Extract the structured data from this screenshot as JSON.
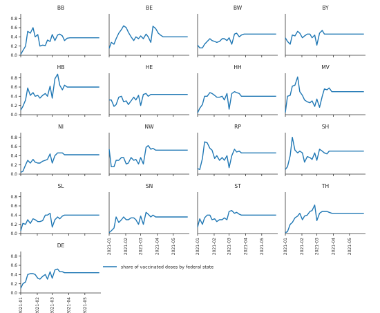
{
  "chart_data": {
    "type": "line",
    "layout": "small-multiples-grid",
    "ncols": 4,
    "legend": {
      "label": "share of vaccinated doses by federal state",
      "placement": "right of last panel"
    },
    "x_ticks": [
      "2021-01",
      "2021-02",
      "2021-03",
      "2021-04",
      "2021-05"
    ],
    "x_range": [
      "2021-01-01",
      "2021-05-31"
    ],
    "y_ticks": [
      0.0,
      0.2,
      0.4,
      0.6,
      0.8
    ],
    "ylim": [
      0,
      0.9
    ],
    "grid": false,
    "line_color": "#1f77b4",
    "dates": [
      "2021-01-01",
      "2021-01-05",
      "2021-01-10",
      "2021-01-14",
      "2021-01-19",
      "2021-01-24",
      "2021-01-28",
      "2021-02-02",
      "2021-02-06",
      "2021-02-11",
      "2021-02-16",
      "2021-02-20",
      "2021-02-25",
      "2021-03-01",
      "2021-03-06",
      "2021-03-11",
      "2021-03-15",
      "2021-03-20",
      "2021-03-24",
      "2021-03-29",
      "2021-04-03",
      "2021-04-07",
      "2021-04-12",
      "2021-04-17",
      "2021-04-21",
      "2021-04-26",
      "2021-04-30",
      "2021-05-05",
      "2021-05-10",
      "2021-05-14",
      "2021-05-19",
      "2021-05-24",
      "2021-05-28"
    ],
    "panels": [
      {
        "title": "BB",
        "values": [
          0.02,
          0.1,
          0.2,
          0.52,
          0.48,
          0.6,
          0.4,
          0.45,
          0.2,
          0.22,
          0.21,
          0.33,
          0.3,
          0.45,
          0.32,
          0.44,
          0.46,
          0.42,
          0.32,
          0.37,
          0.38,
          0.38,
          0.38,
          0.38,
          0.38,
          0.38,
          0.38,
          0.38,
          0.38,
          0.38,
          0.38,
          0.38,
          0.38
        ]
      },
      {
        "title": "BE",
        "values": [
          0.15,
          0.28,
          0.24,
          0.36,
          0.48,
          0.56,
          0.64,
          0.6,
          0.5,
          0.4,
          0.32,
          0.4,
          0.36,
          0.42,
          0.36,
          0.46,
          0.4,
          0.28,
          0.63,
          0.58,
          0.48,
          0.44,
          0.4,
          0.4,
          0.4,
          0.4,
          0.4,
          0.4,
          0.4,
          0.4,
          0.4,
          0.4,
          0.4
        ]
      },
      {
        "title": "BW",
        "values": [
          0.22,
          0.16,
          0.16,
          0.24,
          0.3,
          0.36,
          0.32,
          0.3,
          0.28,
          0.3,
          0.36,
          0.36,
          0.32,
          0.38,
          0.24,
          0.46,
          0.48,
          0.4,
          0.44,
          0.46,
          0.46,
          0.46,
          0.46,
          0.46,
          0.46,
          0.46,
          0.46,
          0.46,
          0.46,
          0.46,
          0.46,
          0.46,
          0.46
        ]
      },
      {
        "title": "BY",
        "values": [
          0.38,
          0.3,
          0.24,
          0.44,
          0.42,
          0.52,
          0.48,
          0.38,
          0.42,
          0.46,
          0.46,
          0.38,
          0.44,
          0.22,
          0.48,
          0.54,
          0.46,
          0.46,
          0.46,
          0.46,
          0.46,
          0.46,
          0.46,
          0.46,
          0.46,
          0.46,
          0.46,
          0.46,
          0.46,
          0.46,
          0.46,
          0.46,
          0.46
        ]
      },
      {
        "title": "HB",
        "values": [
          0.1,
          0.18,
          0.32,
          0.58,
          0.42,
          0.48,
          0.4,
          0.42,
          0.36,
          0.42,
          0.46,
          0.4,
          0.62,
          0.36,
          0.78,
          0.88,
          0.64,
          0.54,
          0.64,
          0.6,
          0.6,
          0.6,
          0.6,
          0.6,
          0.6,
          0.6,
          0.6,
          0.6,
          0.6,
          0.6,
          0.6,
          0.6,
          0.6
        ]
      },
      {
        "title": "HE",
        "values": [
          0.32,
          0.32,
          0.18,
          0.22,
          0.38,
          0.4,
          0.28,
          0.3,
          0.22,
          0.3,
          0.38,
          0.32,
          0.42,
          0.2,
          0.44,
          0.46,
          0.4,
          0.44,
          0.44,
          0.44,
          0.44,
          0.44,
          0.44,
          0.44,
          0.44,
          0.44,
          0.44,
          0.44,
          0.44,
          0.44,
          0.44,
          0.44,
          0.44
        ]
      },
      {
        "title": "HH",
        "values": [
          0.04,
          0.14,
          0.22,
          0.4,
          0.4,
          0.48,
          0.46,
          0.42,
          0.38,
          0.38,
          0.4,
          0.32,
          0.46,
          0.12,
          0.46,
          0.5,
          0.48,
          0.46,
          0.4,
          0.4,
          0.4,
          0.4,
          0.4,
          0.4,
          0.4,
          0.4,
          0.4,
          0.4,
          0.4,
          0.4,
          0.4,
          0.4,
          0.4
        ]
      },
      {
        "title": "MV",
        "values": [
          0.05,
          0.4,
          0.42,
          0.62,
          0.64,
          0.82,
          0.5,
          0.42,
          0.32,
          0.28,
          0.26,
          0.3,
          0.18,
          0.34,
          0.16,
          0.4,
          0.56,
          0.54,
          0.58,
          0.5,
          0.5,
          0.5,
          0.5,
          0.5,
          0.5,
          0.5,
          0.5,
          0.5,
          0.5,
          0.5,
          0.5,
          0.5,
          0.5
        ]
      },
      {
        "title": "NI",
        "values": [
          0.04,
          0.06,
          0.2,
          0.3,
          0.24,
          0.32,
          0.26,
          0.24,
          0.24,
          0.28,
          0.3,
          0.32,
          0.44,
          0.24,
          0.4,
          0.46,
          0.46,
          0.46,
          0.42,
          0.42,
          0.42,
          0.42,
          0.42,
          0.42,
          0.42,
          0.42,
          0.42,
          0.42,
          0.42,
          0.42,
          0.42,
          0.42,
          0.42
        ]
      },
      {
        "title": "NW",
        "values": [
          0.54,
          0.16,
          0.16,
          0.3,
          0.3,
          0.36,
          0.36,
          0.22,
          0.24,
          0.36,
          0.3,
          0.32,
          0.22,
          0.36,
          0.22,
          0.58,
          0.62,
          0.54,
          0.56,
          0.52,
          0.52,
          0.52,
          0.52,
          0.52,
          0.52,
          0.52,
          0.52,
          0.52,
          0.52,
          0.52,
          0.52,
          0.52,
          0.52
        ]
      },
      {
        "title": "RP",
        "values": [
          0.12,
          0.1,
          0.34,
          0.7,
          0.68,
          0.56,
          0.52,
          0.34,
          0.4,
          0.3,
          0.36,
          0.3,
          0.4,
          0.14,
          0.4,
          0.54,
          0.48,
          0.5,
          0.46,
          0.46,
          0.46,
          0.46,
          0.46,
          0.46,
          0.46,
          0.46,
          0.46,
          0.46,
          0.46,
          0.46,
          0.46,
          0.46,
          0.46
        ]
      },
      {
        "title": "SH",
        "values": [
          0.1,
          0.16,
          0.4,
          0.8,
          0.52,
          0.46,
          0.5,
          0.46,
          0.26,
          0.38,
          0.36,
          0.32,
          0.46,
          0.3,
          0.54,
          0.5,
          0.46,
          0.44,
          0.5,
          0.5,
          0.5,
          0.5,
          0.5,
          0.5,
          0.5,
          0.5,
          0.5,
          0.5,
          0.5,
          0.5,
          0.5,
          0.5,
          0.5
        ]
      },
      {
        "title": "SL",
        "values": [
          0.06,
          0.22,
          0.2,
          0.3,
          0.22,
          0.32,
          0.3,
          0.26,
          0.26,
          0.28,
          0.4,
          0.4,
          0.44,
          0.14,
          0.3,
          0.36,
          0.32,
          0.38,
          0.4,
          0.4,
          0.4,
          0.4,
          0.4,
          0.4,
          0.4,
          0.4,
          0.4,
          0.4,
          0.4,
          0.4,
          0.4,
          0.4,
          0.4
        ]
      },
      {
        "title": "SN",
        "values": [
          0.02,
          0.06,
          0.12,
          0.36,
          0.24,
          0.3,
          0.36,
          0.3,
          0.3,
          0.34,
          0.34,
          0.3,
          0.2,
          0.38,
          0.2,
          0.46,
          0.42,
          0.36,
          0.4,
          0.36,
          0.36,
          0.36,
          0.36,
          0.36,
          0.36,
          0.36,
          0.36,
          0.36,
          0.36,
          0.36,
          0.36,
          0.36,
          0.36
        ]
      },
      {
        "title": "ST",
        "values": [
          0.14,
          0.32,
          0.2,
          0.34,
          0.4,
          0.4,
          0.3,
          0.32,
          0.26,
          0.3,
          0.3,
          0.34,
          0.3,
          0.48,
          0.5,
          0.44,
          0.46,
          0.42,
          0.4,
          0.4,
          0.4,
          0.4,
          0.4,
          0.4,
          0.4,
          0.4,
          0.4,
          0.4,
          0.4,
          0.4,
          0.4,
          0.4,
          0.4
        ]
      },
      {
        "title": "TH",
        "values": [
          0.02,
          0.04,
          0.2,
          0.24,
          0.34,
          0.38,
          0.44,
          0.3,
          0.38,
          0.4,
          0.48,
          0.5,
          0.62,
          0.28,
          0.44,
          0.48,
          0.48,
          0.48,
          0.46,
          0.44,
          0.44,
          0.44,
          0.44,
          0.44,
          0.44,
          0.44,
          0.44,
          0.44,
          0.44,
          0.44,
          0.44,
          0.44,
          0.44
        ]
      },
      {
        "title": "DE",
        "values": [
          0.1,
          0.2,
          0.24,
          0.4,
          0.42,
          0.42,
          0.4,
          0.32,
          0.3,
          0.36,
          0.4,
          0.3,
          0.46,
          0.32,
          0.5,
          0.52,
          0.46,
          0.46,
          0.44,
          0.44,
          0.44,
          0.44,
          0.44,
          0.44,
          0.44,
          0.44,
          0.44,
          0.44,
          0.44,
          0.44,
          0.44,
          0.44,
          0.44
        ]
      }
    ]
  }
}
